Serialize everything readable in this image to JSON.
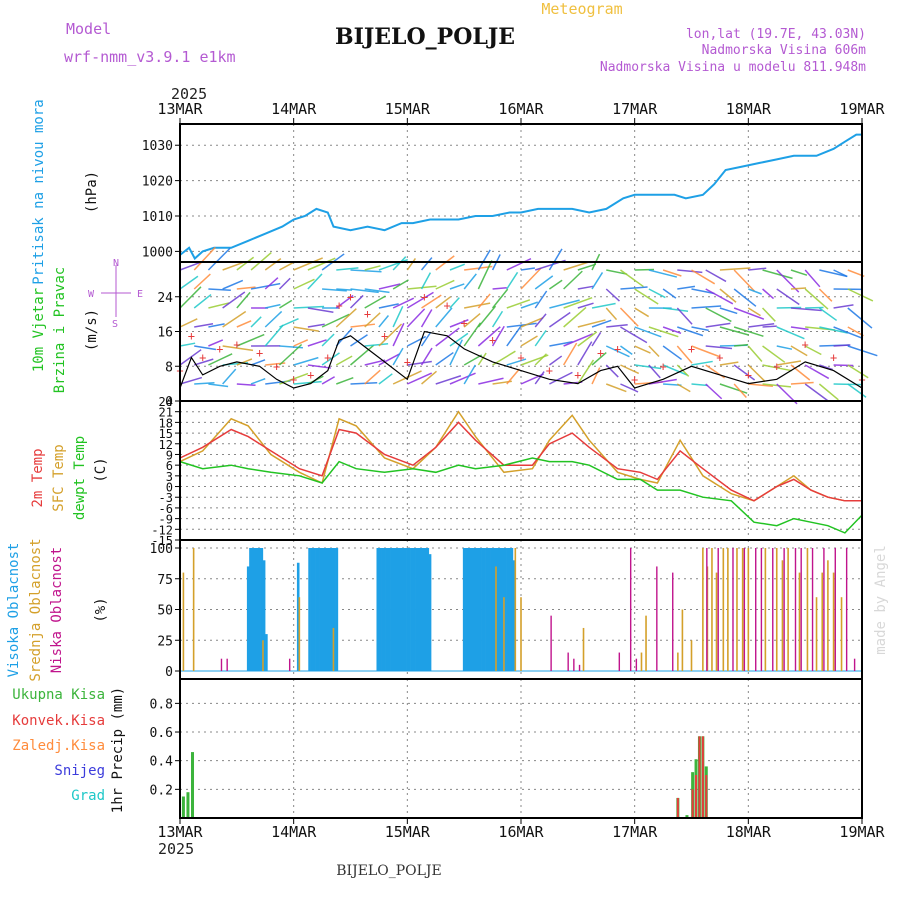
{
  "header": {
    "model_label": "Model",
    "model_name": "wrf-nmm_v3.9.1 e1km",
    "title": "BIJELO_POLJE",
    "meteogram": "Meteogram",
    "lonlat": "lon,lat (19.7E, 43.03N)",
    "altitude": "Nadmorska Visina 606m",
    "model_altitude": "Nadmorska Visina u modelu 811.948m",
    "year_top": "2025",
    "year_bottom": "2025",
    "footer": "BIJELO_POLJE",
    "credit": "made by Angel"
  },
  "colors": {
    "pressure": "#1ea0e6",
    "temp2m": "#e63c3c",
    "sfc": "#d4a02a",
    "dewpt": "#22c322",
    "high_cloud": "#1ea0e6",
    "mid_cloud": "#d4a02a",
    "low_cloud": "#c0148c",
    "total_rain": "#3cb43c",
    "conv_rain": "#e63c3c",
    "frz_rain": "#ff8c3c",
    "snow": "#3c3cdc",
    "grad": "#1ec8c8",
    "wind_speed": "#000000",
    "wind_gust": "#e63c3c",
    "model_text": "#b45ad2"
  },
  "chart_data": [
    {
      "type": "line",
      "id": "pressure",
      "ylabel": "Pritisak na nivou mora",
      "unit": "(hPa)",
      "ylim": [
        997,
        1036
      ],
      "yticks": [
        1000,
        1010,
        1020,
        1030
      ],
      "x_days": [
        0,
        0.08,
        0.13,
        0.2,
        0.3,
        0.45,
        0.6,
        0.75,
        0.9,
        1.0,
        1.1,
        1.2,
        1.3,
        1.35,
        1.5,
        1.65,
        1.8,
        1.95,
        2.05,
        2.2,
        2.3,
        2.45,
        2.6,
        2.75,
        2.9,
        3.0,
        3.15,
        3.3,
        3.45,
        3.6,
        3.75,
        3.9,
        4.0,
        4.2,
        4.35,
        4.45,
        4.6,
        4.7,
        4.8,
        4.95,
        5.1,
        5.25,
        5.4,
        5.5,
        5.6,
        5.75,
        5.85,
        5.95,
        6.0
      ],
      "values": [
        999,
        1001,
        998,
        1000,
        1001,
        1001,
        1003,
        1005,
        1007,
        1009,
        1010,
        1012,
        1011,
        1007,
        1006,
        1007,
        1006,
        1008,
        1008,
        1009,
        1009,
        1009,
        1010,
        1010,
        1011,
        1011,
        1012,
        1012,
        1012,
        1011,
        1012,
        1015,
        1016,
        1016,
        1016,
        1015,
        1016,
        1019,
        1023,
        1024,
        1025,
        1026,
        1027,
        1027,
        1027,
        1029,
        1031,
        1033,
        1033
      ]
    },
    {
      "type": "line",
      "id": "wind",
      "ylabel": "10m Vjetar",
      "ylabel2": "Brzina i Pravac",
      "unit": "(m/s)",
      "ylim": [
        0,
        32
      ],
      "yticks": [
        0,
        8,
        16,
        24
      ],
      "compass": {
        "n": "N",
        "e": "E",
        "s": "S",
        "w": "W"
      },
      "x_days": [
        0,
        0.1,
        0.2,
        0.35,
        0.5,
        0.7,
        0.85,
        1.0,
        1.15,
        1.3,
        1.4,
        1.5,
        1.65,
        1.8,
        2.0,
        2.15,
        2.35,
        2.5,
        2.75,
        3.0,
        3.25,
        3.5,
        3.7,
        3.85,
        4.0,
        4.25,
        4.5,
        4.75,
        5.0,
        5.25,
        5.5,
        5.75,
        6.0
      ],
      "values": [
        3,
        10,
        6,
        8,
        9,
        8,
        5,
        3,
        4,
        7,
        14,
        15,
        12,
        9,
        5,
        16,
        15,
        12,
        9,
        7,
        5,
        4,
        7,
        8,
        3,
        5,
        8,
        6,
        4,
        5,
        9,
        7,
        3
      ],
      "gusts": [
        7,
        15,
        10,
        12,
        13,
        11,
        8,
        5,
        6,
        10,
        22,
        24,
        20,
        15,
        9,
        24,
        22,
        18,
        14,
        10,
        7,
        6,
        11,
        12,
        5,
        8,
        12,
        10,
        6,
        8,
        13,
        10,
        5
      ]
    },
    {
      "type": "line",
      "id": "temperature",
      "ylabel": "2m Temp",
      "ylabel2": "SFC Temp",
      "ylabel3": "dewpt Temp",
      "unit": "(C)",
      "ylim": [
        -15,
        24
      ],
      "yticks": [
        24,
        21,
        18,
        15,
        12,
        9,
        6,
        3,
        0,
        -3,
        -6,
        -9,
        -12,
        -15
      ],
      "x_days": [
        0,
        0.2,
        0.45,
        0.6,
        0.8,
        1.05,
        1.25,
        1.4,
        1.55,
        1.8,
        2.05,
        2.25,
        2.45,
        2.6,
        2.85,
        3.1,
        3.25,
        3.45,
        3.6,
        3.85,
        4.05,
        4.2,
        4.4,
        4.6,
        4.85,
        5.05,
        5.25,
        5.4,
        5.55,
        5.7,
        5.85,
        6.0
      ],
      "t2m": [
        8,
        11,
        16,
        14,
        10,
        5,
        3,
        16,
        15,
        9,
        6,
        11,
        18,
        13,
        6,
        6,
        12,
        15,
        11,
        5,
        4,
        2,
        10,
        5,
        -1,
        -4,
        0,
        2,
        -1,
        -3,
        -4,
        -4
      ],
      "sfc": [
        7,
        10,
        19,
        17,
        9,
        4,
        1,
        19,
        17,
        8,
        5,
        11,
        21,
        14,
        4,
        5,
        13,
        20,
        13,
        4,
        2,
        1,
        13,
        3,
        -2,
        -4,
        0,
        3,
        -1,
        -3,
        -4,
        -4
      ],
      "dewpt": [
        7,
        5,
        6,
        5,
        4,
        3,
        1,
        7,
        5,
        4,
        5,
        4,
        6,
        5,
        6,
        8,
        7,
        7,
        6,
        2,
        2,
        -1,
        -1,
        -3,
        -4,
        -10,
        -11,
        -9,
        -10,
        -11,
        -13,
        -8
      ]
    },
    {
      "type": "bar",
      "id": "clouds",
      "ylabel": "Visoka Oblacnost",
      "ylabel2": "Srednja Oblacnost",
      "ylabel3": "Niska Oblacnost",
      "unit": "(%)",
      "ylim": [
        0,
        100
      ],
      "yticks": [
        0,
        25,
        50,
        75,
        100
      ],
      "high": [
        [
          0.6,
          85
        ],
        [
          0.62,
          100
        ],
        [
          0.64,
          100
        ],
        [
          0.66,
          100
        ],
        [
          0.68,
          100
        ],
        [
          0.7,
          100
        ],
        [
          0.72,
          100
        ],
        [
          0.74,
          90
        ],
        [
          0.76,
          30
        ],
        [
          1.04,
          88
        ],
        [
          1.14,
          100
        ],
        [
          1.16,
          100
        ],
        [
          1.18,
          100
        ],
        [
          1.2,
          100
        ],
        [
          1.22,
          100
        ],
        [
          1.24,
          100
        ],
        [
          1.26,
          100
        ],
        [
          1.28,
          100
        ],
        [
          1.3,
          100
        ],
        [
          1.32,
          100
        ],
        [
          1.34,
          100
        ],
        [
          1.36,
          100
        ],
        [
          1.38,
          100
        ],
        [
          1.74,
          100
        ],
        [
          1.76,
          100
        ],
        [
          1.78,
          100
        ],
        [
          1.8,
          100
        ],
        [
          1.82,
          100
        ],
        [
          1.84,
          100
        ],
        [
          1.86,
          100
        ],
        [
          1.88,
          100
        ],
        [
          1.9,
          100
        ],
        [
          1.92,
          100
        ],
        [
          1.94,
          100
        ],
        [
          1.96,
          100
        ],
        [
          1.98,
          100
        ],
        [
          2.0,
          100
        ],
        [
          2.02,
          100
        ],
        [
          2.04,
          100
        ],
        [
          2.06,
          100
        ],
        [
          2.08,
          100
        ],
        [
          2.1,
          100
        ],
        [
          2.12,
          100
        ],
        [
          2.14,
          100
        ],
        [
          2.16,
          100
        ],
        [
          2.18,
          100
        ],
        [
          2.2,
          95
        ],
        [
          2.5,
          100
        ],
        [
          2.52,
          100
        ],
        [
          2.54,
          100
        ],
        [
          2.56,
          100
        ],
        [
          2.58,
          100
        ],
        [
          2.6,
          100
        ],
        [
          2.62,
          100
        ],
        [
          2.64,
          100
        ],
        [
          2.66,
          100
        ],
        [
          2.68,
          100
        ],
        [
          2.7,
          100
        ],
        [
          2.72,
          100
        ],
        [
          2.74,
          100
        ],
        [
          2.76,
          100
        ],
        [
          2.78,
          100
        ],
        [
          2.8,
          100
        ],
        [
          2.82,
          100
        ],
        [
          2.84,
          100
        ],
        [
          2.86,
          100
        ],
        [
          2.88,
          100
        ],
        [
          2.9,
          100
        ],
        [
          2.92,
          100
        ],
        [
          2.94,
          90
        ]
      ],
      "mid": [
        [
          0.03,
          80
        ],
        [
          0.12,
          100
        ],
        [
          0.73,
          25
        ],
        [
          1.05,
          60
        ],
        [
          1.35,
          35
        ],
        [
          2.78,
          85
        ],
        [
          2.85,
          60
        ],
        [
          2.95,
          100
        ],
        [
          3.0,
          60
        ],
        [
          3.55,
          35
        ],
        [
          4.06,
          15
        ],
        [
          4.1,
          45
        ],
        [
          4.38,
          15
        ],
        [
          4.42,
          50
        ],
        [
          4.5,
          25
        ],
        [
          4.6,
          100
        ],
        [
          4.64,
          85
        ],
        [
          4.68,
          100
        ],
        [
          4.72,
          80
        ],
        [
          4.78,
          100
        ],
        [
          4.82,
          100
        ],
        [
          4.9,
          100
        ],
        [
          4.95,
          100
        ],
        [
          5.0,
          100
        ],
        [
          5.15,
          100
        ],
        [
          5.25,
          100
        ],
        [
          5.3,
          90
        ],
        [
          5.35,
          100
        ],
        [
          5.45,
          80
        ],
        [
          5.52,
          100
        ],
        [
          5.6,
          60
        ],
        [
          5.65,
          80
        ],
        [
          5.7,
          90
        ],
        [
          5.75,
          80
        ],
        [
          5.82,
          60
        ]
      ],
      "low": [
        [
          0.35,
          10
        ],
        [
          0.4,
          10
        ],
        [
          0.95,
          10
        ],
        [
          3.25,
          45
        ],
        [
          3.4,
          15
        ],
        [
          3.45,
          10
        ],
        [
          3.5,
          5
        ],
        [
          3.85,
          15
        ],
        [
          3.95,
          100
        ],
        [
          4.0,
          10
        ],
        [
          4.18,
          85
        ],
        [
          4.32,
          80
        ],
        [
          4.62,
          100
        ],
        [
          4.72,
          100
        ],
        [
          4.85,
          100
        ],
        [
          4.95,
          100
        ],
        [
          5.05,
          100
        ],
        [
          5.1,
          100
        ],
        [
          5.2,
          100
        ],
        [
          5.3,
          100
        ],
        [
          5.4,
          100
        ],
        [
          5.45,
          100
        ],
        [
          5.55,
          100
        ],
        [
          5.65,
          100
        ],
        [
          5.75,
          100
        ],
        [
          5.85,
          100
        ],
        [
          5.92,
          10
        ]
      ]
    },
    {
      "type": "bar",
      "id": "precip",
      "ylabel": "1hr Precip (mm)",
      "ylim": [
        0,
        0.97
      ],
      "yticks": [
        0.2,
        0.4,
        0.6,
        0.8
      ],
      "legend": [
        "Ukupna Kisa",
        "Konvek.Kisa",
        "Zaledj.Kisa",
        "Snijeg",
        "Grad"
      ],
      "total": [
        [
          0.03,
          0.15
        ],
        [
          0.07,
          0.18
        ],
        [
          0.11,
          0.46
        ],
        [
          4.38,
          0.14
        ],
        [
          4.46,
          0.02
        ],
        [
          4.51,
          0.32
        ],
        [
          4.54,
          0.41
        ],
        [
          4.57,
          0.57
        ],
        [
          4.6,
          0.57
        ],
        [
          4.63,
          0.36
        ]
      ],
      "convective": [
        [
          4.38,
          0.14
        ],
        [
          4.51,
          0.2
        ],
        [
          4.54,
          0.3
        ],
        [
          4.57,
          0.57
        ],
        [
          4.6,
          0.57
        ],
        [
          4.63,
          0.3
        ]
      ]
    }
  ],
  "axis": {
    "dates": [
      "13MAR",
      "14MAR",
      "15MAR",
      "16MAR",
      "17MAR",
      "18MAR",
      "19MAR"
    ]
  }
}
